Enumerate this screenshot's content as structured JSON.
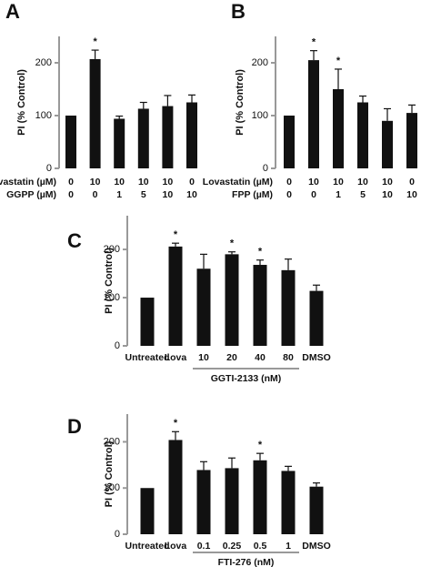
{
  "chart_data": [
    {
      "type": "bar",
      "panel_label": "A",
      "ylabel": "PI (% Control)",
      "ylim": [
        0,
        250
      ],
      "yticks": [
        0,
        100,
        200
      ],
      "color": "#111111",
      "category_rows": [
        {
          "label": "Lovastatin (µM)",
          "values": [
            "0",
            "10",
            "10",
            "10",
            "10",
            "0"
          ]
        },
        {
          "label": "GGPP (µM)",
          "values": [
            "0",
            "0",
            "1",
            "5",
            "10",
            "10"
          ]
        }
      ],
      "values": [
        100,
        207,
        94,
        113,
        118,
        125
      ],
      "errors": [
        0,
        17,
        5,
        12,
        20,
        14
      ],
      "annotations": [
        null,
        "*",
        null,
        null,
        null,
        null
      ]
    },
    {
      "type": "bar",
      "panel_label": "B",
      "ylabel": "PI (% Control)",
      "ylim": [
        0,
        250
      ],
      "yticks": [
        0,
        100,
        200
      ],
      "color": "#111111",
      "category_rows": [
        {
          "label": "Lovastatin (µM)",
          "values": [
            "0",
            "10",
            "10",
            "10",
            "10",
            "0"
          ]
        },
        {
          "label": "FPP (µM)",
          "values": [
            "0",
            "0",
            "1",
            "5",
            "10",
            "10"
          ]
        }
      ],
      "values": [
        100,
        205,
        150,
        125,
        90,
        105
      ],
      "errors": [
        0,
        18,
        38,
        12,
        23,
        15
      ],
      "annotations": [
        null,
        "*",
        "*",
        null,
        null,
        null
      ]
    },
    {
      "type": "bar",
      "panel_label": "C",
      "ylabel": "PI (% Control)",
      "ylim": [
        0,
        270
      ],
      "yticks": [
        0,
        100,
        200
      ],
      "color": "#111111",
      "categories": [
        "Untreated",
        "Lova",
        "10",
        "20",
        "40",
        "80",
        "DMSO"
      ],
      "values": [
        100,
        206,
        160,
        190,
        168,
        157,
        114
      ],
      "errors": [
        0,
        7,
        30,
        5,
        10,
        23,
        12
      ],
      "annotations": [
        null,
        "*",
        null,
        "*",
        "*",
        null,
        null
      ],
      "group": {
        "label": "GGTI-2133 (nM)",
        "from": 2,
        "to": 5
      }
    },
    {
      "type": "bar",
      "panel_label": "D",
      "ylabel": "PI (% Control)",
      "ylim": [
        0,
        260
      ],
      "yticks": [
        0,
        100,
        200
      ],
      "color": "#111111",
      "categories": [
        "Untreated",
        "Lova",
        "0.1",
        "0.25",
        "0.5",
        "1",
        "DMSO"
      ],
      "values": [
        100,
        204,
        139,
        143,
        160,
        137,
        103
      ],
      "errors": [
        0,
        18,
        18,
        22,
        15,
        10,
        8
      ],
      "annotations": [
        null,
        "*",
        null,
        null,
        "*",
        null,
        null
      ],
      "group": {
        "label": "FTI-276 (nM)",
        "from": 2,
        "to": 5
      }
    }
  ]
}
